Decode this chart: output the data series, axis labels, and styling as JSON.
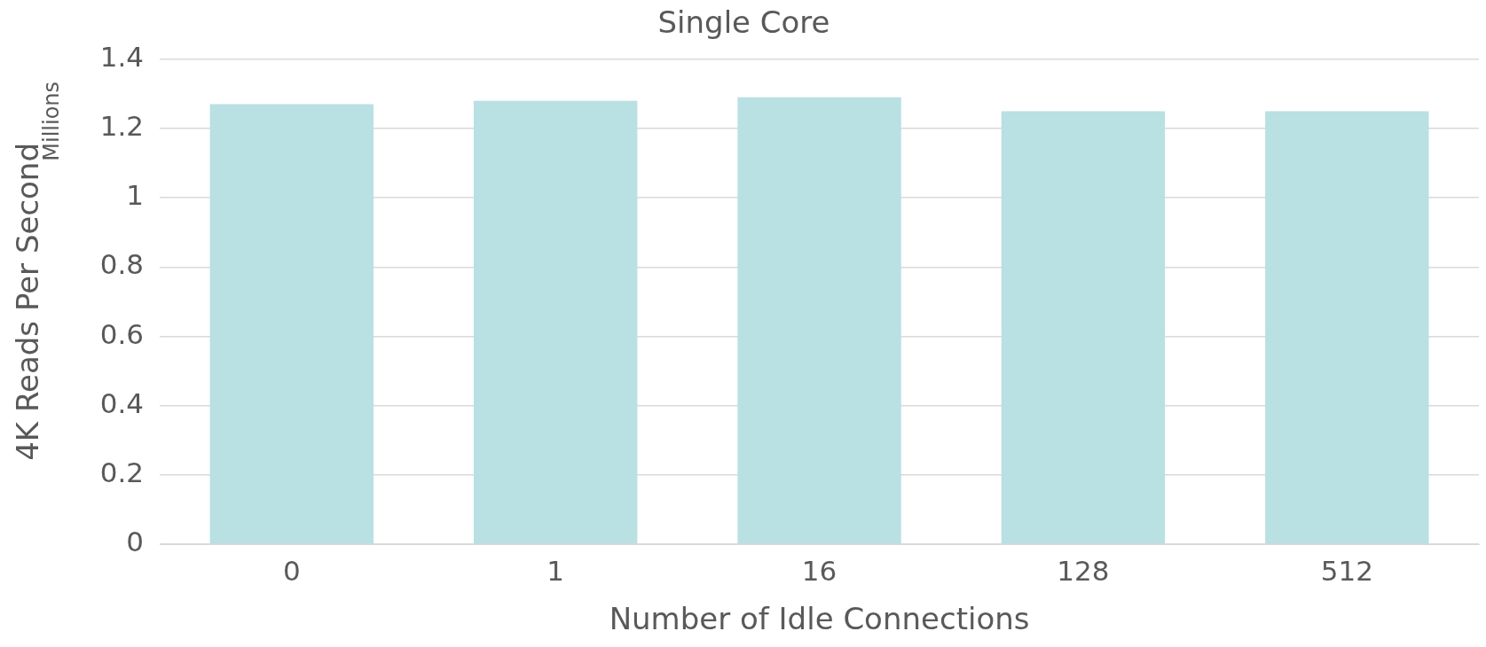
{
  "chart_data": {
    "type": "bar",
    "title": "Single Core",
    "xlabel": "Number of Idle Connections",
    "ylabel": "4K Reads Per Second",
    "annotations": [
      "Millions"
    ],
    "categories": [
      "0",
      "1",
      "16",
      "128",
      "512"
    ],
    "values": [
      1.27,
      1.28,
      1.29,
      1.25,
      1.25
    ],
    "color": "#b9e0e3",
    "ylim": [
      0,
      1.4
    ],
    "yticks": [
      0,
      0.2,
      0.4,
      0.6,
      0.8,
      1,
      1.2,
      1.4
    ],
    "grid": "y",
    "legend": false
  }
}
